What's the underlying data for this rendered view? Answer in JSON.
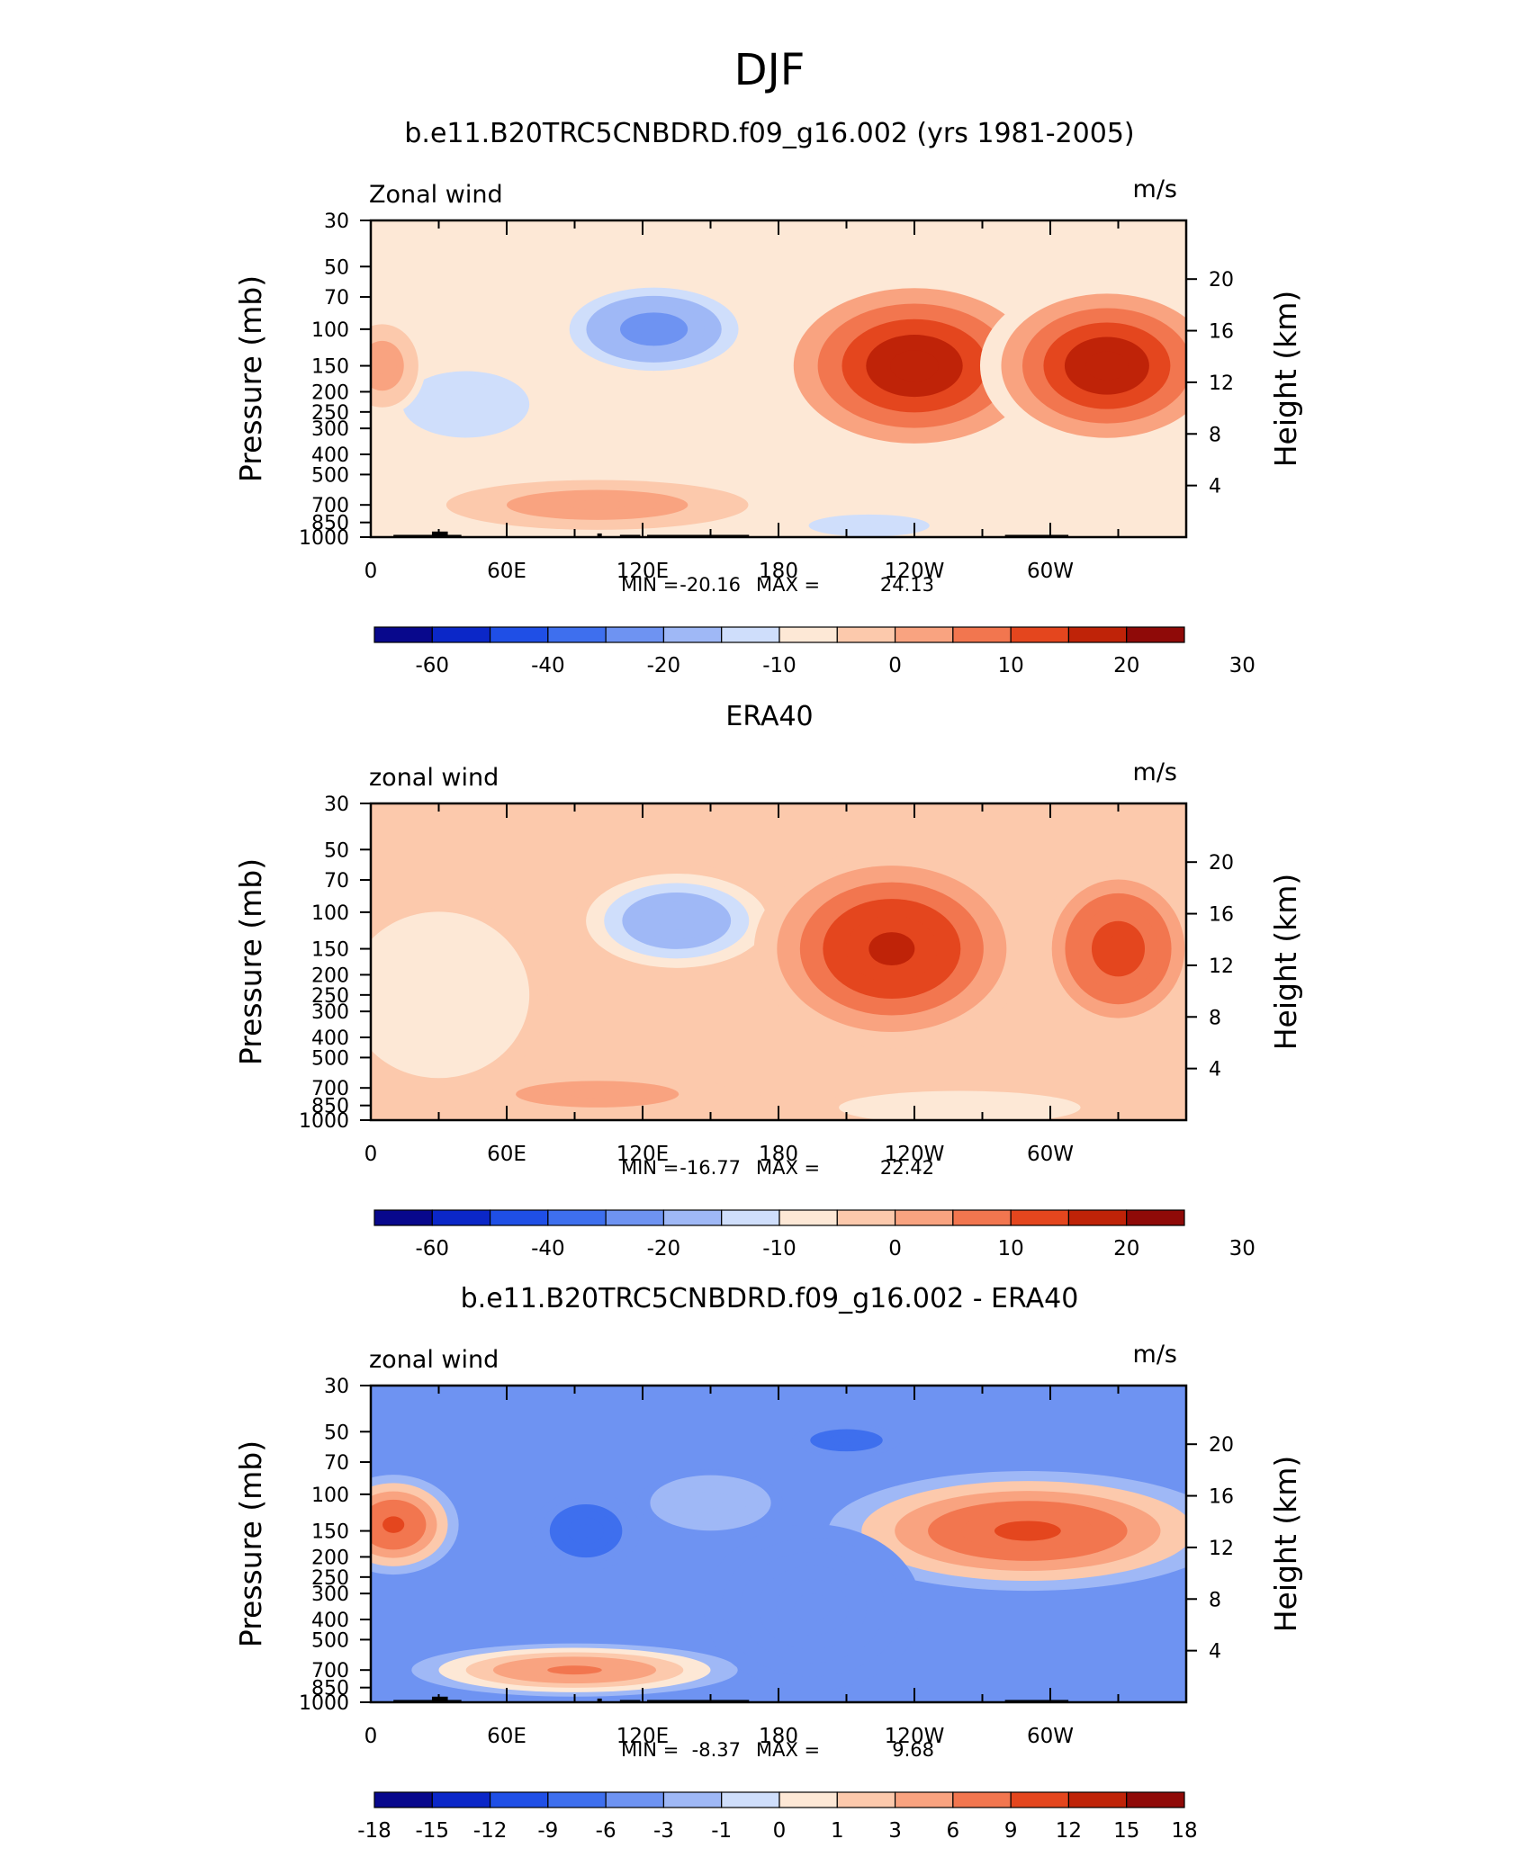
{
  "figure": {
    "season": "DJF"
  },
  "colors": {
    "scale": [
      "#08088c",
      "#0b27c8",
      "#1f4fe6",
      "#3e6fee",
      "#6e93f2",
      "#9fb8f6",
      "#cfdefb",
      "#fde8d6",
      "#fcc9ac",
      "#f9a380",
      "#f2764f",
      "#e4461e",
      "#bf2308",
      "#8f0a08"
    ],
    "land": "#000000",
    "frame": "#000000"
  },
  "chart_data": [
    {
      "type": "heatmap",
      "title": "b.e11.B20TRC5CNBDRD.f09_g16.002 (yrs 1981-2005)",
      "left_label": "Zonal wind",
      "units": "m/s",
      "ylabel": "Pressure (mb)",
      "ylabel_right": "Height (km)",
      "x_ticks": [
        "0",
        "60E",
        "120E",
        "180",
        "120W",
        "60W"
      ],
      "y_ticks": [
        "30",
        "50",
        "70",
        "100",
        "150",
        "200",
        "250",
        "300",
        "400",
        "500",
        "700",
        "850",
        "1000"
      ],
      "y_ticks_right": [
        "20",
        "16",
        "12",
        "8",
        "4"
      ],
      "xlim": [
        0,
        360
      ],
      "ylim": [
        1000,
        30
      ],
      "stats": {
        "min_label": "MIN =",
        "min": "-20.16",
        "max_label": "MAX =",
        "max": "24.13"
      },
      "colorbar": {
        "labels": [
          "-60",
          "-40",
          "-20",
          "-10",
          "0",
          "10",
          "20",
          "30"
        ]
      },
      "features": [
        {
          "lon": 125,
          "p": 100,
          "value": -18,
          "wlon": 28,
          "wlogp": 0.15
        },
        {
          "lon": 42,
          "p": 230,
          "value": -6,
          "wlon": 35,
          "wlogp": 0.2
        },
        {
          "lon": 240,
          "p": 150,
          "value": 24,
          "wlon": 40,
          "wlogp": 0.28
        },
        {
          "lon": 325,
          "p": 150,
          "value": 23,
          "wlon": 35,
          "wlogp": 0.26
        },
        {
          "lon": 5,
          "p": 150,
          "value": 10,
          "wlon": 12,
          "wlogp": 0.15
        },
        {
          "lon": 100,
          "p": 700,
          "value": 8,
          "wlon": 50,
          "wlogp": 0.09
        },
        {
          "lon": 220,
          "p": 880,
          "value": -8,
          "wlon": 25,
          "wlogp": 0.05
        }
      ],
      "background_value": -3
    },
    {
      "type": "heatmap",
      "title": "ERA40",
      "left_label": "zonal wind",
      "units": "m/s",
      "ylabel": "Pressure (mb)",
      "ylabel_right": "Height (km)",
      "x_ticks": [
        "0",
        "60E",
        "120E",
        "180",
        "120W",
        "60W"
      ],
      "y_ticks": [
        "30",
        "50",
        "70",
        "100",
        "150",
        "200",
        "250",
        "300",
        "400",
        "500",
        "700",
        "850",
        "1000"
      ],
      "y_ticks_right": [
        "20",
        "16",
        "12",
        "8",
        "4"
      ],
      "xlim": [
        0,
        360
      ],
      "ylim": [
        1000,
        30
      ],
      "stats": {
        "min_label": "MIN =",
        "min": "-16.77",
        "max_label": "MAX =",
        "max": "22.42"
      },
      "colorbar": {
        "labels": [
          "-60",
          "-40",
          "-20",
          "-10",
          "0",
          "10",
          "20",
          "30"
        ]
      },
      "features": [
        {
          "lon": 135,
          "p": 110,
          "value": -15,
          "wlon": 30,
          "wlogp": 0.17
        },
        {
          "lon": 30,
          "p": 250,
          "value": -4,
          "wlon": 30,
          "wlogp": 0.3
        },
        {
          "lon": 230,
          "p": 150,
          "value": 22,
          "wlon": 38,
          "wlogp": 0.3
        },
        {
          "lon": 330,
          "p": 150,
          "value": 18,
          "wlon": 22,
          "wlogp": 0.25
        },
        {
          "lon": 100,
          "p": 750,
          "value": 6,
          "wlon": 45,
          "wlogp": 0.08
        },
        {
          "lon": 260,
          "p": 870,
          "value": -4,
          "wlon": 40,
          "wlogp": 0.06
        }
      ],
      "background_value": 2
    },
    {
      "type": "heatmap",
      "title": "b.e11.B20TRC5CNBDRD.f09_g16.002 - ERA40",
      "left_label": "zonal wind",
      "units": "m/s",
      "ylabel": "Pressure (mb)",
      "ylabel_right": "Height (km)",
      "x_ticks": [
        "0",
        "60E",
        "120E",
        "180",
        "120W",
        "60W"
      ],
      "y_ticks": [
        "30",
        "50",
        "70",
        "100",
        "150",
        "200",
        "250",
        "300",
        "400",
        "500",
        "700",
        "850",
        "1000"
      ],
      "y_ticks_right": [
        "20",
        "16",
        "12",
        "8",
        "4"
      ],
      "xlim": [
        0,
        360
      ],
      "ylim": [
        1000,
        30
      ],
      "stats": {
        "min_label": "MIN =",
        "min": "-8.37",
        "max_label": "MAX =",
        "max": "9.68"
      },
      "colorbar": {
        "labels": [
          "-18",
          "-15",
          "-12",
          "-9",
          "-6",
          "-3",
          "-1",
          "0",
          "1",
          "3",
          "6",
          "9",
          "12",
          "15",
          "18"
        ]
      },
      "features": [
        {
          "lon": 10,
          "p": 140,
          "value": 10,
          "wlon": 18,
          "wlogp": 0.15
        },
        {
          "lon": 290,
          "p": 150,
          "value": 10,
          "wlon": 55,
          "wlogp": 0.18
        },
        {
          "lon": 90,
          "p": 700,
          "value": 7,
          "wlon": 45,
          "wlogp": 0.08
        },
        {
          "lon": 95,
          "p": 150,
          "value": -8,
          "wlon": 15,
          "wlogp": 0.12
        },
        {
          "lon": 210,
          "p": 55,
          "value": -8,
          "wlon": 15,
          "wlogp": 0.05
        },
        {
          "lon": 150,
          "p": 110,
          "value": -1,
          "wlon": 20,
          "wlogp": 0.1
        },
        {
          "lon": 195,
          "p": 350,
          "value": -5,
          "wlon": 30,
          "wlogp": 0.25
        }
      ],
      "background_value": -4
    }
  ]
}
